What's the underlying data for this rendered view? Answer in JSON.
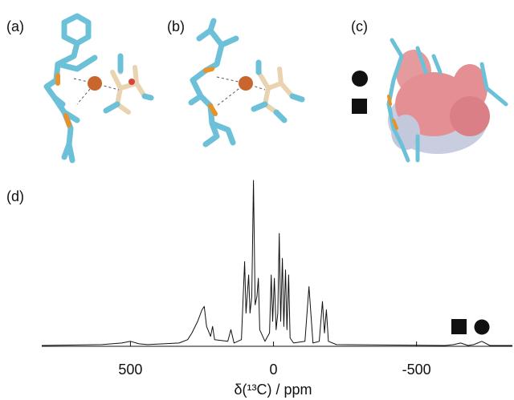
{
  "panels": [
    "(a)",
    "(b)",
    "(c)",
    "(d)"
  ],
  "chart_data": {
    "type": "line",
    "xlabel": "δ(¹³C) / ppm",
    "color": "#111111",
    "x": [
      810,
      600,
      530,
      500,
      470,
      440,
      330,
      300,
      285,
      265,
      250,
      242,
      234,
      220,
      213,
      206,
      160,
      149,
      138,
      112,
      106,
      101,
      96,
      92,
      87,
      82,
      76,
      70,
      64,
      58,
      53,
      48,
      30,
      14,
      8,
      3,
      -3,
      -9,
      -15,
      -20,
      -25,
      -31,
      -36,
      -42,
      -47,
      -53,
      -58,
      -70,
      -110,
      -124,
      -138,
      -160,
      -171,
      -178,
      -185,
      -192,
      -220,
      -600,
      -630,
      -654,
      -680,
      -700,
      -728,
      -756,
      -835
    ],
    "values": [
      0.5,
      1,
      2,
      3,
      1.5,
      1,
      2,
      4,
      8,
      15,
      22,
      24,
      12,
      6,
      12,
      4,
      3,
      10,
      2,
      4,
      30,
      51,
      20,
      30,
      43,
      20,
      30,
      100,
      25,
      30,
      41,
      10,
      3,
      8,
      43,
      15,
      41,
      10,
      20,
      68,
      15,
      53,
      12,
      46,
      10,
      43,
      5,
      2,
      3,
      36,
      2,
      3,
      27,
      8,
      22,
      3,
      1,
      0.5,
      1,
      2,
      0.5,
      1,
      3,
      0.5,
      0.5
    ],
    "xlim": [
      810,
      -835
    ],
    "xticks": [
      500,
      0,
      -500
    ],
    "ylim": [
      0,
      100
    ]
  }
}
